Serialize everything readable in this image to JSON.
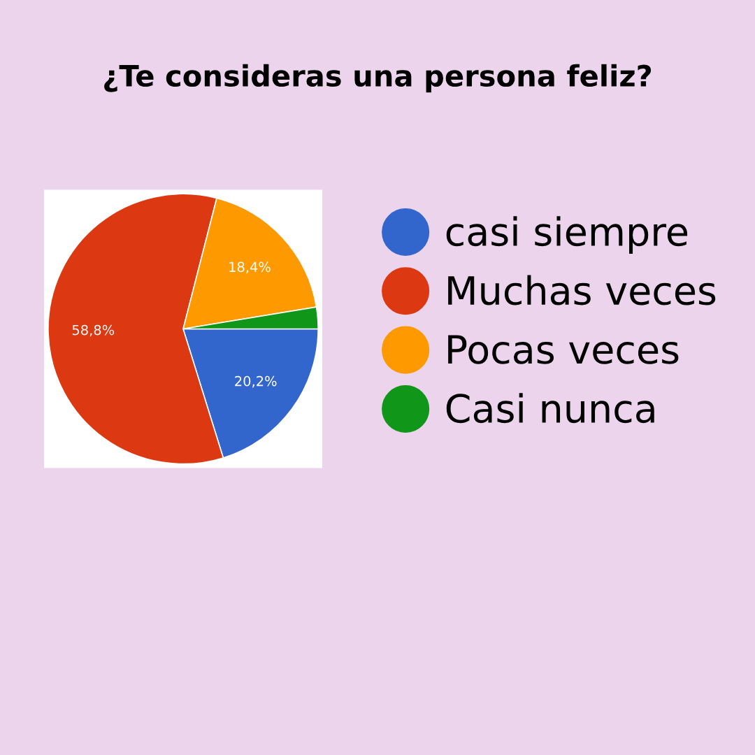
{
  "chart_data": {
    "type": "pie",
    "title": "¿Te consideras una persona feliz?",
    "categories": [
      "casi siempre",
      "Muchas veces",
      "Pocas veces",
      "Casi nunca"
    ],
    "values": [
      20.2,
      58.8,
      18.4,
      2.6
    ],
    "colors": [
      "#3366cc",
      "#dc3912",
      "#ff9900",
      "#109618"
    ],
    "value_labels": [
      "20,2%",
      "58,8%",
      "18,4%",
      null
    ],
    "legend": "right"
  }
}
